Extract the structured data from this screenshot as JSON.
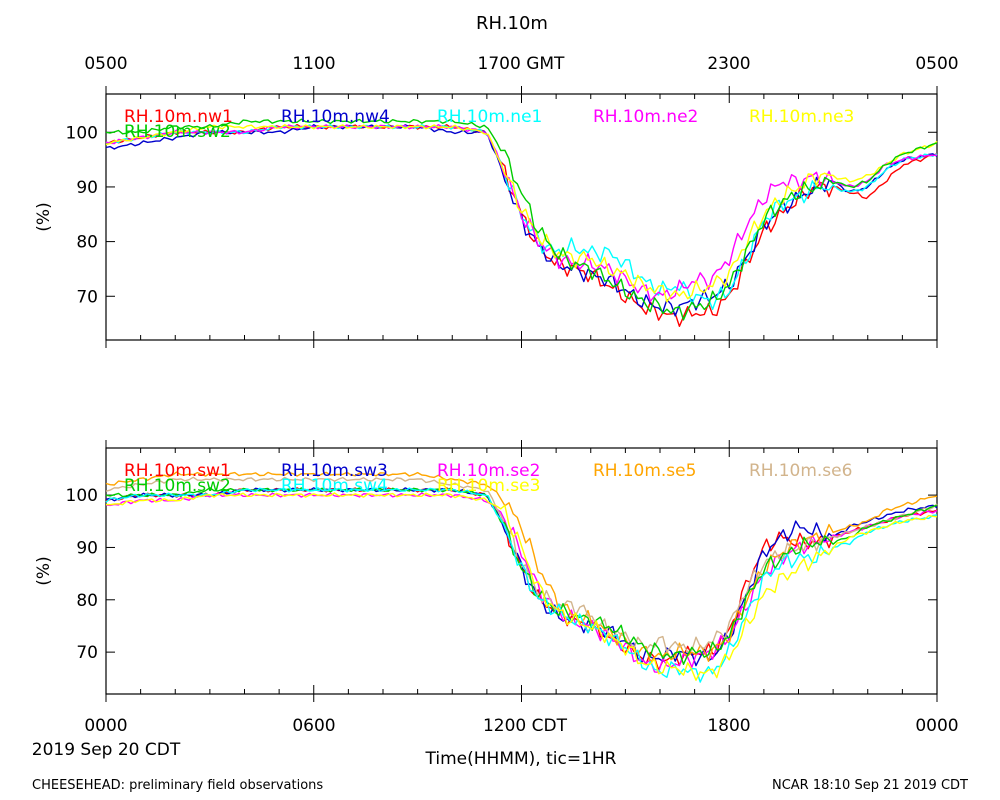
{
  "title": "RH.10m",
  "footer": {
    "left": "CHEESEHEAD: preliminary field observations",
    "right": "NCAR 18:10 Sep 21 2019 CDT"
  },
  "top_axis_labels": [
    "0500",
    "1100",
    "1700 GMT",
    "2300",
    "0500"
  ],
  "bottom_axis_labels": [
    "0000",
    "0600",
    "1200 CDT",
    "1800",
    "0000"
  ],
  "date_label": "2019 Sep 20 CDT",
  "xlabel": "Time(HHMM), tic=1HR",
  "chart_data": [
    {
      "type": "line",
      "title": "RH.10m",
      "ylabel": "(%)",
      "xlabel": "Time(HHMM), tic=1HR",
      "xlim": [
        0,
        24
      ],
      "ylim": [
        62,
        107
      ],
      "yticks": [
        70,
        80,
        90,
        100
      ],
      "ytick_labels": [
        "70",
        "80",
        "90",
        "100"
      ],
      "x_hours": [
        0,
        1,
        2,
        3,
        4,
        5,
        6,
        7,
        8,
        9,
        10,
        11,
        11.5,
        12,
        12.5,
        13,
        13.5,
        14,
        14.5,
        15,
        15.5,
        16,
        16.5,
        17,
        17.5,
        18,
        18.5,
        19,
        19.5,
        20,
        20.5,
        21,
        21.5,
        22,
        22.5,
        23,
        24
      ],
      "series": [
        {
          "name": "RH.10m.nw1",
          "color": "#ff0000",
          "values": [
            98,
            99,
            100,
            100,
            100,
            101,
            101,
            101,
            101,
            101,
            101,
            100,
            93,
            85,
            79,
            76,
            75,
            74,
            72,
            70,
            68,
            67,
            66,
            67,
            67,
            70,
            76,
            82,
            85,
            88,
            90,
            90,
            89,
            88,
            91,
            94,
            96
          ]
        },
        {
          "name": "RH.10m.nw4",
          "color": "#0000cc",
          "values": [
            97,
            98,
            99,
            100,
            100,
            100,
            101,
            101,
            101,
            101,
            100,
            100,
            92,
            84,
            79,
            76,
            75,
            74,
            73,
            71,
            69,
            68,
            68,
            69,
            70,
            72,
            77,
            83,
            86,
            88,
            90,
            91,
            89,
            90,
            93,
            95,
            96
          ]
        },
        {
          "name": "RH.10m.ne1",
          "color": "#00ffff",
          "values": [
            98,
            99,
            100,
            100,
            100,
            101,
            101,
            101,
            101,
            101,
            101,
            100,
            93,
            85,
            80,
            78,
            79,
            78,
            78,
            76,
            73,
            71,
            72,
            70,
            69,
            71,
            77,
            84,
            87,
            88,
            90,
            90,
            89,
            90,
            93,
            95,
            96
          ]
        },
        {
          "name": "RH.10m.ne2",
          "color": "#ff00ff",
          "values": [
            98,
            99,
            100,
            100,
            100,
            101,
            101,
            101,
            101,
            101,
            101,
            100,
            93,
            85,
            80,
            77,
            76,
            76,
            75,
            73,
            71,
            70,
            71,
            73,
            73,
            77,
            83,
            88,
            91,
            91,
            92,
            91,
            90,
            91,
            94,
            95,
            96
          ]
        },
        {
          "name": "RH.10m.ne3",
          "color": "#ffff00",
          "values": [
            98,
            99,
            100,
            101,
            101,
            101,
            101,
            101,
            101,
            101,
            101,
            100,
            93,
            86,
            81,
            78,
            77,
            77,
            75,
            74,
            72,
            71,
            70,
            71,
            72,
            74,
            80,
            85,
            88,
            90,
            92,
            92,
            91,
            92,
            94,
            96,
            98
          ]
        },
        {
          "name": "RH.10m.sw2",
          "color": "#00cc00",
          "values": [
            100,
            100,
            101,
            101,
            102,
            102,
            102,
            102,
            102,
            102,
            102,
            101,
            96,
            89,
            82,
            78,
            76,
            75,
            73,
            71,
            69,
            68,
            67,
            68,
            69,
            72,
            78,
            84,
            87,
            89,
            90,
            91,
            90,
            91,
            94,
            96,
            98
          ]
        }
      ]
    },
    {
      "type": "line",
      "ylabel": "(%)",
      "xlabel": "Time(HHMM), tic=1HR",
      "xlim": [
        0,
        24
      ],
      "ylim": [
        62,
        109
      ],
      "yticks": [
        70,
        80,
        90,
        100
      ],
      "ytick_labels": [
        "70",
        "80",
        "90",
        "100"
      ],
      "x_hours": [
        0,
        1,
        2,
        3,
        4,
        5,
        6,
        7,
        8,
        9,
        10,
        11,
        11.5,
        12,
        12.5,
        13,
        13.5,
        14,
        14.5,
        15,
        15.5,
        16,
        16.5,
        17,
        17.5,
        18,
        18.5,
        19,
        19.5,
        20,
        20.5,
        21,
        21.5,
        22,
        22.5,
        23,
        24
      ],
      "series": [
        {
          "name": "RH.10m.sw1",
          "color": "#ff0000",
          "values": [
            99,
            100,
            100,
            100,
            101,
            101,
            101,
            101,
            101,
            101,
            101,
            100,
            94,
            86,
            80,
            78,
            76,
            75,
            73,
            71,
            69,
            68,
            69,
            70,
            70,
            74,
            83,
            90,
            92,
            91,
            91,
            92,
            93,
            94,
            95,
            96,
            97
          ]
        },
        {
          "name": "RH.10m.sw3",
          "color": "#0000cc",
          "values": [
            99,
            100,
            100,
            100,
            101,
            101,
            101,
            101,
            101,
            101,
            101,
            100,
            94,
            86,
            80,
            77,
            76,
            75,
            74,
            72,
            69,
            69,
            70,
            69,
            69,
            73,
            81,
            89,
            92,
            94,
            93,
            92,
            94,
            95,
            96,
            97,
            98
          ]
        },
        {
          "name": "RH.10m.se2",
          "color": "#ff00ff",
          "values": [
            98,
            99,
            99,
            100,
            100,
            100,
            100,
            100,
            100,
            100,
            100,
            99,
            96,
            89,
            82,
            78,
            76,
            75,
            73,
            71,
            68,
            67,
            68,
            69,
            70,
            73,
            79,
            85,
            88,
            90,
            91,
            92,
            93,
            94,
            95,
            96,
            97
          ]
        },
        {
          "name": "RH.10m.se5",
          "color": "#ffa500",
          "values": [
            102,
            103,
            104,
            104,
            104,
            104,
            104,
            104,
            104,
            104,
            103,
            102,
            99,
            94,
            86,
            80,
            77,
            76,
            74,
            72,
            70,
            69,
            70,
            70,
            70,
            73,
            80,
            86,
            89,
            91,
            92,
            93,
            94,
            95,
            97,
            98,
            100
          ]
        },
        {
          "name": "RH.10m.se6",
          "color": "#d2b48c",
          "values": [
            101,
            102,
            103,
            103,
            103,
            103,
            103,
            103,
            103,
            103,
            102,
            101,
            95,
            87,
            81,
            79,
            79,
            77,
            74,
            73,
            71,
            72,
            71,
            71,
            72,
            75,
            82,
            87,
            89,
            90,
            91,
            92,
            93,
            94,
            95,
            96,
            98
          ]
        },
        {
          "name": "RH.10m.sw2",
          "color": "#00cc00",
          "values": [
            100,
            100,
            100,
            101,
            101,
            101,
            101,
            101,
            101,
            101,
            101,
            100,
            94,
            86,
            81,
            78,
            77,
            76,
            75,
            73,
            71,
            70,
            69,
            70,
            70,
            73,
            80,
            86,
            88,
            90,
            91,
            91,
            92,
            94,
            95,
            96,
            98
          ]
        },
        {
          "name": "RH.10m.sw4",
          "color": "#00ffff",
          "values": [
            99,
            100,
            100,
            100,
            101,
            101,
            101,
            101,
            101,
            101,
            101,
            100,
            94,
            86,
            80,
            78,
            76,
            75,
            73,
            71,
            68,
            66,
            67,
            66,
            66,
            70,
            77,
            84,
            87,
            88,
            88,
            90,
            91,
            93,
            94,
            95,
            96
          ]
        },
        {
          "name": "RH.10m.se3",
          "color": "#ffff00",
          "values": [
            98,
            99,
            99,
            100,
            100,
            100,
            100,
            100,
            100,
            100,
            100,
            99,
            97,
            90,
            82,
            78,
            76,
            75,
            73,
            71,
            68,
            67,
            67,
            66,
            66,
            69,
            75,
            81,
            84,
            86,
            88,
            90,
            92,
            93,
            94,
            95,
            96
          ]
        }
      ]
    }
  ]
}
